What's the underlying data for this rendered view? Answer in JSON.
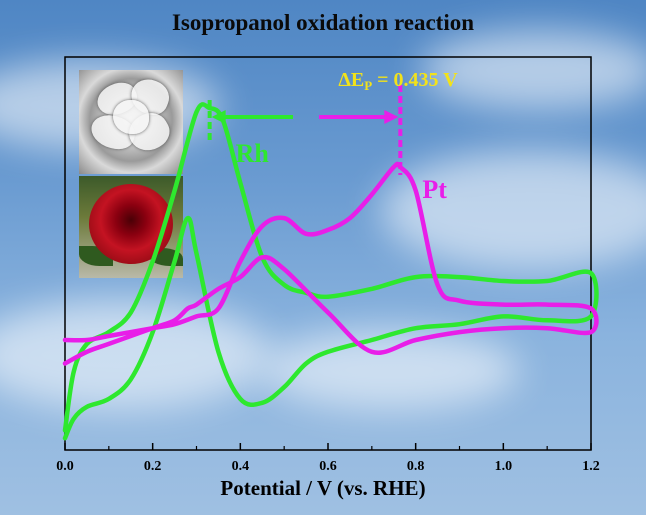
{
  "title": "Isopropanol oxidation reaction",
  "inset": {
    "images": [
      "sem-micrograph",
      "red-rose-photo"
    ]
  },
  "annotations": {
    "delta_ep": "ΔE",
    "delta_ep_sub": "P",
    "delta_ep_value": " = 0.435 V",
    "rh_label": "Rh",
    "pt_label": "Pt"
  },
  "colors": {
    "rh": "#2ee82e",
    "pt": "#e81ee8",
    "delta_text": "#f2e21a"
  },
  "chart_data": {
    "type": "line",
    "title": "Isopropanol oxidation reaction",
    "xlabel": "Potential / V (vs. RHE)",
    "ylabel": "",
    "xlim": [
      0.0,
      1.2
    ],
    "ylim": [
      0,
      100
    ],
    "x_ticks": [
      "0.0",
      "0.2",
      "0.4",
      "0.6",
      "0.8",
      "1.0",
      "1.2"
    ],
    "y_ticks_shown": false,
    "peak_separation_V": 0.435,
    "peaks": [
      {
        "series": "Rh",
        "x": 0.33
      },
      {
        "series": "Pt",
        "x": 0.765
      }
    ],
    "series": [
      {
        "name": "Rh",
        "color": "#2ee82e",
        "x": [
          0.0,
          0.02,
          0.05,
          0.1,
          0.15,
          0.2,
          0.25,
          0.3,
          0.33,
          0.36,
          0.4,
          0.45,
          0.5,
          0.55,
          0.6,
          0.7,
          0.8,
          0.9,
          1.0,
          1.1,
          1.2,
          1.2,
          1.1,
          1.0,
          0.9,
          0.8,
          0.7,
          0.6,
          0.55,
          0.5,
          0.45,
          0.4,
          0.35,
          0.3,
          0.28,
          0.25,
          0.2,
          0.15,
          0.1,
          0.05,
          0.02,
          0.0
        ],
        "y": [
          5,
          20,
          27,
          30,
          35,
          48,
          66,
          86,
          87,
          84,
          68,
          49,
          42,
          40,
          39,
          41,
          44,
          44,
          43,
          43,
          45,
          34,
          33,
          34,
          32,
          31,
          28,
          25,
          22,
          16,
          12,
          13,
          25,
          50,
          59,
          48,
          30,
          18,
          13,
          11,
          8,
          3
        ]
      },
      {
        "name": "Pt",
        "color": "#e81ee8",
        "x": [
          0.0,
          0.05,
          0.1,
          0.15,
          0.2,
          0.25,
          0.3,
          0.35,
          0.4,
          0.45,
          0.5,
          0.55,
          0.6,
          0.65,
          0.7,
          0.75,
          0.765,
          0.8,
          0.85,
          0.9,
          1.0,
          1.1,
          1.2,
          1.2,
          1.1,
          1.0,
          0.9,
          0.8,
          0.7,
          0.6,
          0.5,
          0.45,
          0.4,
          0.35,
          0.3,
          0.28,
          0.25,
          0.2,
          0.1,
          0.05,
          0.0
        ],
        "y": [
          28,
          28,
          29,
          30,
          31,
          32,
          34,
          36,
          48,
          57,
          59,
          55,
          56,
          59,
          65,
          72,
          72,
          66,
          42,
          38,
          37,
          37,
          36,
          30,
          31,
          31,
          30,
          28,
          25,
          35,
          46,
          49,
          44,
          41,
          37,
          36,
          33,
          31,
          27,
          25,
          22
        ]
      }
    ]
  }
}
